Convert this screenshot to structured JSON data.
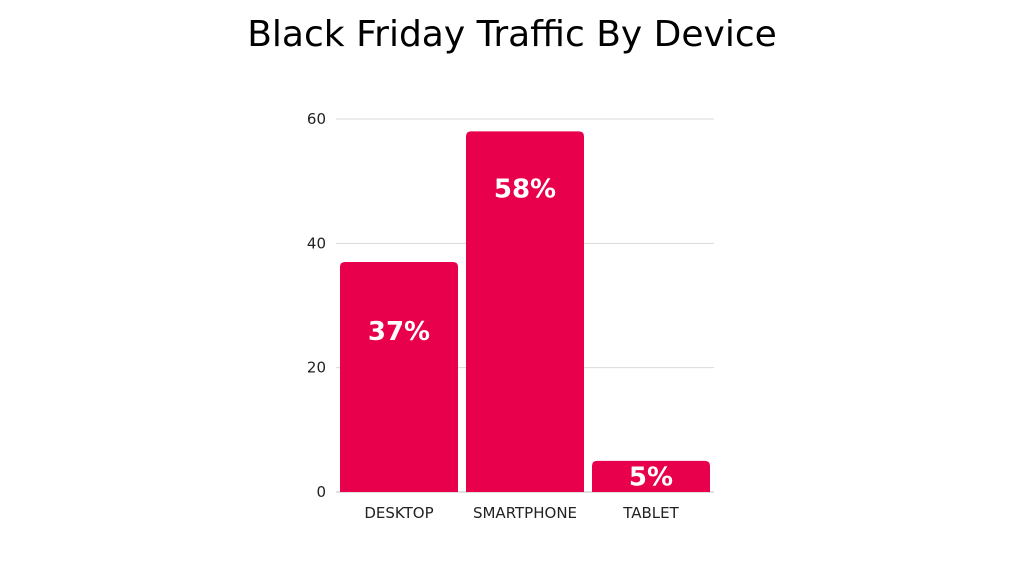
{
  "chart_data": {
    "type": "bar",
    "title": "Black Friday Traffic By Device",
    "categories": [
      "DESKTOP",
      "SMARTPHONE",
      "TABLET"
    ],
    "values": [
      37,
      58,
      5
    ],
    "data_labels": [
      "37%",
      "58%",
      "5%"
    ],
    "yticks": [
      0,
      20,
      40,
      60
    ],
    "ylim": [
      0,
      60
    ],
    "xlabel": "",
    "ylabel": "",
    "grid": true,
    "legend": "none",
    "bar_color": "#e8004c"
  }
}
